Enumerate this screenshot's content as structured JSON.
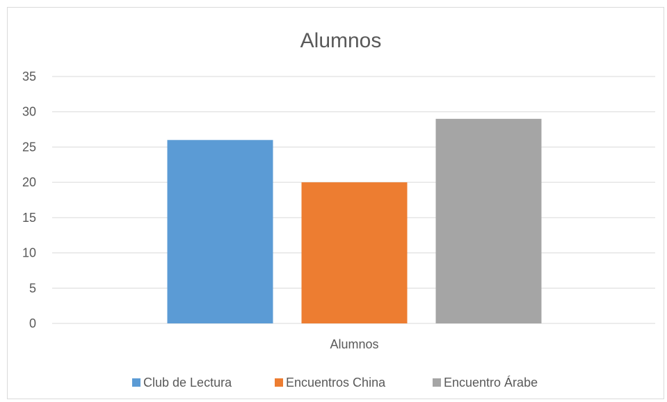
{
  "chart_data": {
    "type": "bar",
    "title": "Alumnos",
    "categories": [
      "Alumnos"
    ],
    "series": [
      {
        "name": "Club de Lectura",
        "values": [
          26
        ],
        "color": "#5b9bd5"
      },
      {
        "name": "Encuentros China",
        "values": [
          20
        ],
        "color": "#ed7d31"
      },
      {
        "name": "Encuentro Árabe",
        "values": [
          29
        ],
        "color": "#a5a5a5"
      }
    ],
    "ylim": [
      0,
      35
    ],
    "yticks": [
      0,
      5,
      10,
      15,
      20,
      25,
      30,
      35
    ],
    "grid": true,
    "legend_position": "bottom"
  }
}
